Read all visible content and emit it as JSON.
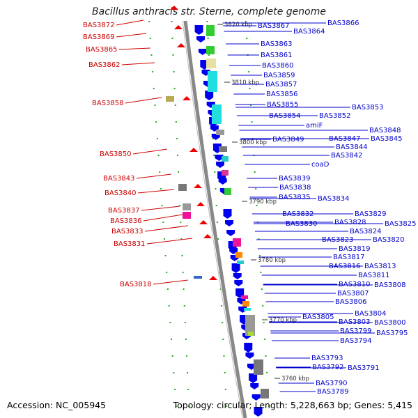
{
  "title": "Bacillus anthracis str. Sterne, complete genome",
  "accession": "Accession: NC_005945",
  "topology": "Topology: circular; Length: 5,228,663 bp; Genes: 5,415",
  "colors": {
    "forward_genes": "#0000ee",
    "reverse_genes": "#ee0000",
    "left_labels": "#cc0000",
    "right_labels": "#0000cc",
    "backbone": "#888888",
    "tick_marks": "#22aa22"
  },
  "kbp_ticks": [
    "3820 kbp",
    "3810 kbp",
    "3800 kbp",
    "3790 kbp",
    "3780 kbp",
    "3770 kbp",
    "3760 kbp"
  ],
  "left_labels": [
    "BAS3872",
    "BAS3869",
    "BAS3865",
    "BAS3862",
    "BAS3858",
    "BAS3850",
    "BAS3843",
    "BAS3840",
    "BAS3837",
    "BAS3836",
    "BAS3833",
    "BAS3831",
    "BAS3818"
  ],
  "right_labels": [
    "BAS3866",
    "BAS3867",
    "BAS3864",
    "BAS3863",
    "BAS3861",
    "BAS3860",
    "BAS3859",
    "BAS3857",
    "BAS3856",
    "BAS3855",
    "BAS3853",
    "BAS3854",
    "BAS3852",
    "amiF",
    "BAS3848",
    "BAS3847",
    "BAS3845",
    "BAS3849",
    "BAS3844",
    "BAS3842",
    "coaD",
    "BAS3839",
    "BAS3838",
    "BAS3835",
    "BAS3834",
    "BAS3832",
    "BAS3829",
    "BAS3828",
    "BAS3825",
    "BAS3830",
    "BAS3824",
    "BAS3823",
    "BAS3820",
    "BAS3819",
    "BAS3817",
    "BAS3816",
    "BAS3813",
    "BAS3811",
    "BAS3810",
    "BAS3808",
    "BAS3807",
    "BAS3806",
    "BAS3804",
    "BAS3805",
    "BAS3803",
    "BAS3800",
    "BAS3799",
    "BAS3795",
    "BAS3794",
    "BAS3793",
    "BAS3792",
    "BAS3791",
    "BAS3790",
    "BAS3789"
  ]
}
